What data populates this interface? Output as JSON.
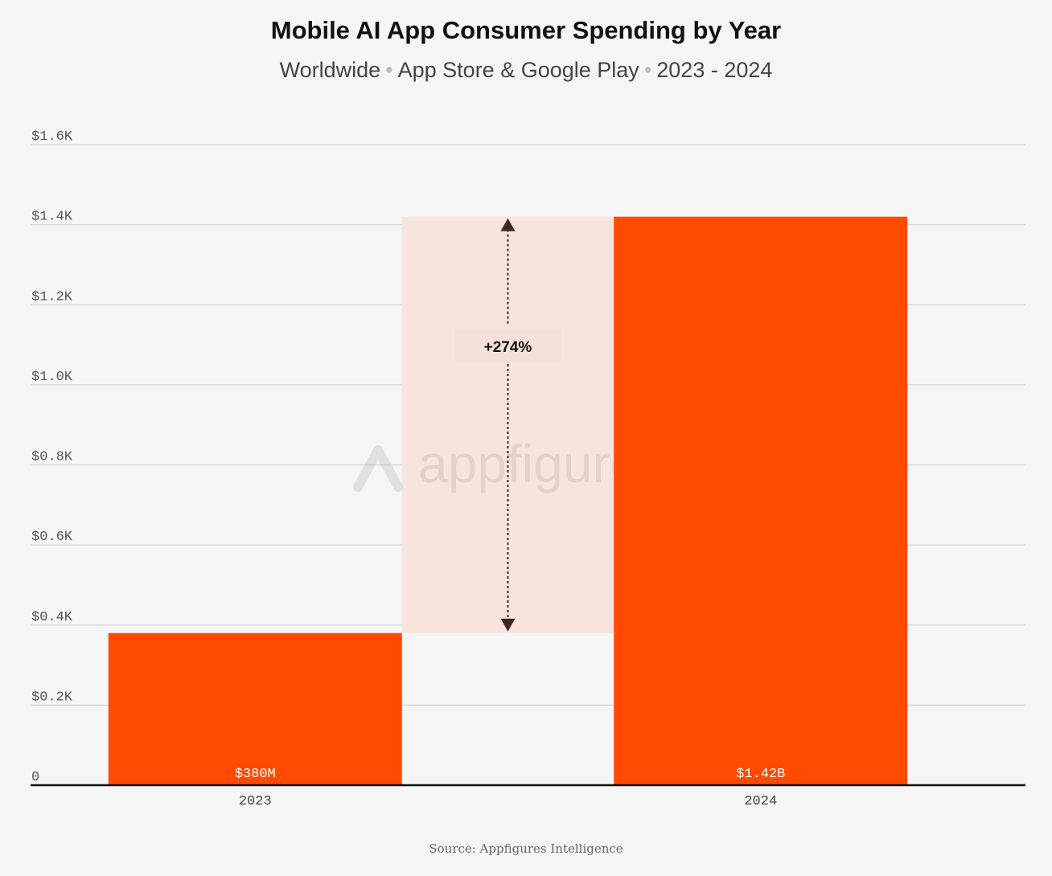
{
  "title": "Mobile AI App Consumer Spending by Year",
  "subtitle": {
    "parts": [
      "Worldwide",
      "App Store & Google Play",
      "2023 - 2024"
    ],
    "separator": "•"
  },
  "watermark": "appfigures",
  "source": "Source: Appfigures Intelligence",
  "colors": {
    "bar": "#ff4a00",
    "highlight_band": "#f6e4dd",
    "gridline": "#d9d9d9",
    "axis": "#111111"
  },
  "chart_data": {
    "type": "bar",
    "categories": [
      "2023",
      "2024"
    ],
    "values": [
      380,
      1420
    ],
    "data_labels": [
      "$380M",
      "$1.42B"
    ],
    "ylim": [
      0,
      1600
    ],
    "yticks": [
      0,
      200,
      400,
      600,
      800,
      1000,
      1200,
      1400,
      1600
    ],
    "ytick_labels": [
      "0",
      "$0.2K",
      "$0.4K",
      "$0.6K",
      "$0.8K",
      "$1.0K",
      "$1.2K",
      "$1.4K",
      "$1.6K"
    ],
    "grid": true,
    "annotation": {
      "label": "+274%",
      "from_value": 380,
      "to_value": 1420
    }
  }
}
